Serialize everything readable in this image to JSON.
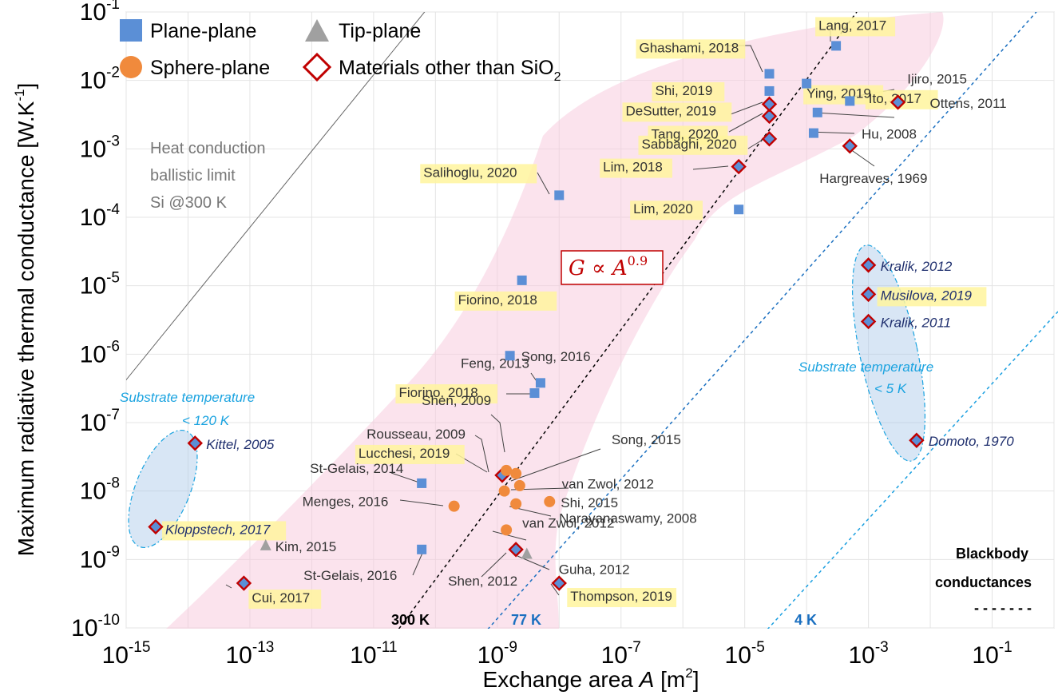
{
  "chart_data": {
    "type": "scatter",
    "xlabel_main": "Exchange area ",
    "xlabel_var": "A",
    "xlabel_unit": " [m",
    "xlabel_sup": "2",
    "xlabel_end": "]",
    "ylabel": "Maximum radiative thermal conductance [W.K",
    "ylabel_sup": "-1",
    "ylabel_end": "]",
    "x_log_range": [
      -15,
      0
    ],
    "y_log_range": [
      -10,
      -1
    ],
    "x_ticks": [
      {
        "exp": -15,
        "base": "10",
        "sup": "-15"
      },
      {
        "exp": -13,
        "base": "10",
        "sup": "-13"
      },
      {
        "exp": -11,
        "base": "10",
        "sup": "-11"
      },
      {
        "exp": -9,
        "base": "10",
        "sup": "-9"
      },
      {
        "exp": -7,
        "base": "10",
        "sup": "-7"
      },
      {
        "exp": -5,
        "base": "10",
        "sup": "-5"
      },
      {
        "exp": -3,
        "base": "10",
        "sup": "-3"
      },
      {
        "exp": -1,
        "base": "10",
        "sup": "-1"
      }
    ],
    "y_ticks": [
      {
        "exp": -10,
        "base": "10",
        "sup": "-10"
      },
      {
        "exp": -9,
        "base": "10",
        "sup": "-9"
      },
      {
        "exp": -8,
        "base": "10",
        "sup": "-8"
      },
      {
        "exp": -7,
        "base": "10",
        "sup": "-7"
      },
      {
        "exp": -6,
        "base": "10",
        "sup": "-6"
      },
      {
        "exp": -5,
        "base": "10",
        "sup": "-5"
      },
      {
        "exp": -4,
        "base": "10",
        "sup": "-4"
      },
      {
        "exp": -3,
        "base": "10",
        "sup": "-3"
      },
      {
        "exp": -2,
        "base": "10",
        "sup": "-2"
      },
      {
        "exp": -1,
        "base": "10",
        "sup": "-1"
      }
    ],
    "grid": true,
    "legend_placement": "top-left",
    "legend": [
      {
        "marker": "square",
        "label": "Plane-plane",
        "color": "#5b8fd6"
      },
      {
        "marker": "triangle",
        "label": "Tip-plane",
        "color": "#a0a0a0"
      },
      {
        "marker": "circle",
        "label": "Sphere-plane",
        "color": "#f08a3c"
      },
      {
        "marker": "diamond",
        "label": "Materials other than SiO",
        "sub": "2",
        "color": "#c00000"
      }
    ],
    "colors": {
      "square": "#5b8fd6",
      "circle": "#f08a3c",
      "triangle": "#a0a0a0",
      "diamond": "#c00000",
      "highlight": "#fff59d",
      "band": "#f8c8dc",
      "ellipse": "#a9c8e8",
      "blue_line": "#1aa3e0"
    },
    "points": [
      {
        "x": 1.3e-14,
        "y": 5e-08,
        "m": "diamond",
        "hl": false,
        "label": "Kittel, 2005",
        "italic": true
      },
      {
        "x": 3e-15,
        "y": 3e-09,
        "m": "diamond",
        "hl": true,
        "label": "Kloppstech, 2017",
        "italic": true
      },
      {
        "x": 1.8e-13,
        "y": 1.6e-09,
        "m": "triangle",
        "hl": false,
        "label": "Kim, 2015",
        "italic": false
      },
      {
        "x": 8e-14,
        "y": 4.5e-10,
        "m": "diamond",
        "hl": true,
        "label": "Cui, 2017",
        "italic": false
      },
      {
        "x": 6e-11,
        "y": 1.3e-08,
        "m": "square",
        "hl": false,
        "label": "St-Gelais, 2014",
        "italic": false
      },
      {
        "x": 6e-11,
        "y": 1.4e-09,
        "m": "square",
        "hl": false,
        "label": "St-Gelais, 2016",
        "italic": false
      },
      {
        "x": 2e-10,
        "y": 6e-09,
        "m": "circle",
        "hl": false,
        "label": "Menges, 2016",
        "italic": false
      },
      {
        "x": 1.2e-09,
        "y": 1.7e-08,
        "m": "diamond",
        "hl": true,
        "label": "Lucchesi, 2019",
        "italic": false
      },
      {
        "x": 1.4e-09,
        "y": 2e-08,
        "m": "circle",
        "hl": false,
        "label": "Rousseau, 2009",
        "italic": false
      },
      {
        "x": 2e-09,
        "y": 1.8e-08,
        "m": "circle",
        "hl": false,
        "label": "Shen, 2009",
        "italic": false
      },
      {
        "x": 2.3e-09,
        "y": 1.2e-08,
        "m": "circle",
        "hl": false,
        "label": "Song, 2015",
        "italic": false
      },
      {
        "x": 1.3e-09,
        "y": 1e-08,
        "m": "circle",
        "hl": false,
        "label": "van Zwol, 2012",
        "italic": false
      },
      {
        "x": 2e-09,
        "y": 6.5e-09,
        "m": "circle",
        "hl": false,
        "label": "Narayanaswamy, 2008",
        "italic": false
      },
      {
        "x": 7e-09,
        "y": 7e-09,
        "m": "circle",
        "hl": false,
        "label": "Shi, 2015",
        "italic": false
      },
      {
        "x": 1.4e-09,
        "y": 2.7e-09,
        "m": "circle",
        "hl": false,
        "label": "van Zwol, 2012",
        "italic": false
      },
      {
        "x": 2e-09,
        "y": 1.4e-09,
        "m": "diamond",
        "hl": false,
        "label": "Shen, 2012",
        "italic": false
      },
      {
        "x": 3e-09,
        "y": 1.2e-09,
        "m": "triangle",
        "hl": false,
        "label": "Guha, 2012",
        "italic": false
      },
      {
        "x": 1e-08,
        "y": 4.5e-10,
        "m": "diamond",
        "hl": true,
        "label": "Thompson, 2019",
        "italic": false
      },
      {
        "x": 1.6e-09,
        "y": 9.5e-07,
        "m": "square",
        "hl": false,
        "label": "Song, 2016",
        "italic": false
      },
      {
        "x": 5e-09,
        "y": 3.8e-07,
        "m": "square",
        "hl": false,
        "label": "Feng, 2013",
        "italic": false
      },
      {
        "x": 4e-09,
        "y": 2.7e-07,
        "m": "square",
        "hl": true,
        "label": "Fiorino, 2018",
        "italic": false
      },
      {
        "x": 2.5e-09,
        "y": 1.2e-05,
        "m": "square",
        "hl": true,
        "label": "Fiorino, 2018",
        "italic": false
      },
      {
        "x": 1e-08,
        "y": 0.00021,
        "m": "square",
        "hl": true,
        "label": "Salihoglu, 2020",
        "italic": false
      },
      {
        "x": 8e-06,
        "y": 0.00013,
        "m": "square",
        "hl": true,
        "label": "Lim, 2020",
        "italic": false
      },
      {
        "x": 8e-06,
        "y": 0.00055,
        "m": "diamond",
        "hl": true,
        "label": "Lim, 2018",
        "italic": false
      },
      {
        "x": 2.5e-05,
        "y": 0.0014,
        "m": "diamond",
        "hl": true,
        "label": "Sabbaghi, 2020",
        "italic": false
      },
      {
        "x": 2.5e-05,
        "y": 0.003,
        "m": "diamond",
        "hl": true,
        "label": "Tang, 2020",
        "italic": false
      },
      {
        "x": 2.5e-05,
        "y": 0.0045,
        "m": "diamond",
        "hl": true,
        "label": "DeSutter, 2019",
        "italic": false
      },
      {
        "x": 2.5e-05,
        "y": 0.007,
        "m": "square",
        "hl": true,
        "label": "Shi, 2019",
        "italic": false
      },
      {
        "x": 2.5e-05,
        "y": 0.0125,
        "m": "square",
        "hl": true,
        "label": "Ghashami, 2018",
        "italic": false
      },
      {
        "x": 0.0001,
        "y": 0.009,
        "m": "square",
        "hl": true,
        "label": "Ying, 2019",
        "italic": false
      },
      {
        "x": 0.0003,
        "y": 0.032,
        "m": "square",
        "hl": true,
        "label": "Lang, 2017",
        "italic": false
      },
      {
        "x": 0.0005,
        "y": 0.005,
        "m": "square",
        "hl": false,
        "label": "Ijiro, 2015",
        "italic": false
      },
      {
        "x": 0.00015,
        "y": 0.0034,
        "m": "square",
        "hl": true,
        "label": "Ito, 2017",
        "italic": false
      },
      {
        "x": 0.00013,
        "y": 0.0017,
        "m": "square",
        "hl": false,
        "label": "Hu, 2008",
        "italic": false
      },
      {
        "x": 0.003,
        "y": 0.0048,
        "m": "diamond",
        "hl": false,
        "label": "Ottens, 2011",
        "italic": false
      },
      {
        "x": 0.0005,
        "y": 0.0011,
        "m": "diamond",
        "hl": false,
        "label": "Hargreaves, 1969",
        "italic": false
      },
      {
        "x": 0.001,
        "y": 2e-05,
        "m": "diamond",
        "hl": false,
        "label": "Kralik, 2012",
        "italic": true
      },
      {
        "x": 0.001,
        "y": 7.5e-06,
        "m": "diamond",
        "hl": true,
        "label": "Musilova, 2019",
        "italic": true
      },
      {
        "x": 0.001,
        "y": 3e-06,
        "m": "diamond",
        "hl": false,
        "label": "Kralik, 2011",
        "italic": true
      },
      {
        "x": 0.006,
        "y": 5.5e-08,
        "m": "diamond",
        "hl": false,
        "label": "Domoto, 1970",
        "italic": true
      }
    ],
    "blackbody_lines": [
      {
        "label": "300 K",
        "color": "#000000"
      },
      {
        "label": "77 K",
        "color": "#1a6fc0"
      },
      {
        "label": "4 K",
        "color": "#1a6fc0"
      }
    ],
    "annotations": {
      "heat_line1": "Heat conduction",
      "heat_line2": "ballistic limit",
      "heat_line3": "Si @300 K",
      "substrate_120_line1": "Substrate temperature",
      "substrate_120_line2": "< 120 K",
      "substrate_5_line1": "Substrate temperature",
      "substrate_5_line2": "< 5 K",
      "fit_lhs": "G ∝ A",
      "fit_exp": "0.9",
      "blackbody_line1": "Blackbody",
      "blackbody_line2": "conductances",
      "blackbody_dash": "- - - - - - -"
    }
  }
}
